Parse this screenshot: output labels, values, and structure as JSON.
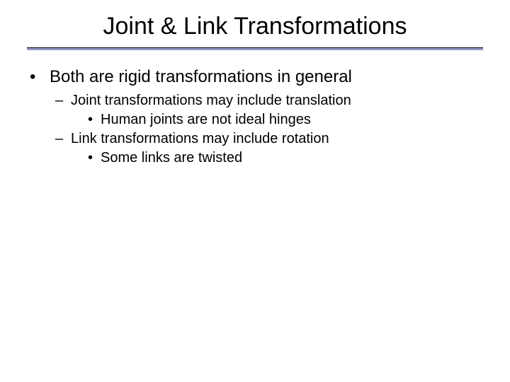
{
  "title": "Joint & Link Transformations",
  "colors": {
    "background": "#ffffff",
    "text": "#000000",
    "divider": "#9999cc",
    "divider_top_border": "#000000"
  },
  "typography": {
    "title_fontsize": 34,
    "l1_fontsize": 24,
    "l2_fontsize": 20,
    "l3_fontsize": 20,
    "font_family": "Arial"
  },
  "bullets": {
    "l1_marker": "•",
    "l2_marker": "–",
    "l3_marker": "•",
    "items": [
      {
        "text": "Both are rigid transformations in general",
        "children": [
          {
            "text": "Joint transformations may include translation",
            "children": [
              {
                "text": "Human joints are not ideal hinges"
              }
            ]
          },
          {
            "text": "Link transformations may include rotation",
            "children": [
              {
                "text": "Some links are twisted"
              }
            ]
          }
        ]
      }
    ]
  }
}
